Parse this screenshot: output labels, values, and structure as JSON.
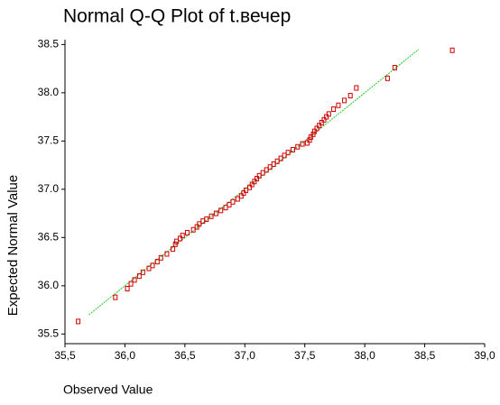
{
  "chart_data": {
    "type": "scatter",
    "title": "Normal Q-Q Plot of t.вечер",
    "x_label": "Observed Value",
    "y_label": "Expected Normal Value",
    "xlim": [
      35.5,
      39.0
    ],
    "ylim": [
      35.4,
      38.55
    ],
    "xticks": [
      {
        "value": 35.5,
        "label": "35,5"
      },
      {
        "value": 36,
        "label": "36,0"
      },
      {
        "value": 36.5,
        "label": "36,5"
      },
      {
        "value": 37,
        "label": "37,0"
      },
      {
        "value": 37.5,
        "label": "37,5"
      },
      {
        "value": 38,
        "label": "38,0"
      },
      {
        "value": 38.5,
        "label": "38,5"
      },
      {
        "value": 39,
        "label": "39,0"
      }
    ],
    "yticks": [
      35.5,
      {
        "value": 36,
        "label": "36.0"
      },
      36.5,
      {
        "value": 37,
        "label": "37.0"
      },
      37.5,
      {
        "value": 38,
        "label": "38.0"
      },
      38.5
    ],
    "color": "#cc0000",
    "x": [
      35.61,
      35.92,
      36.02,
      36.05,
      36.08,
      36.12,
      36.15,
      36.2,
      36.23,
      36.27,
      36.3,
      36.35,
      36.4,
      36.42,
      36.43,
      36.46,
      36.48,
      36.52,
      36.57,
      36.6,
      36.62,
      36.65,
      36.68,
      36.72,
      36.76,
      36.8,
      36.84,
      36.87,
      36.9,
      36.94,
      36.97,
      36.99,
      37.01,
      37.04,
      37.06,
      37.08,
      37.1,
      37.12,
      37.15,
      37.18,
      37.21,
      37.24,
      37.27,
      37.3,
      37.33,
      37.36,
      37.4,
      37.44,
      37.48,
      37.52,
      37.54,
      37.55,
      37.57,
      37.58,
      37.6,
      37.62,
      37.64,
      37.66,
      37.68,
      37.7,
      37.74,
      37.78,
      37.83,
      37.88,
      37.93,
      38.19,
      38.25,
      38.73
    ],
    "values": [
      35.63,
      35.88,
      35.97,
      36.02,
      36.06,
      36.1,
      36.14,
      36.18,
      36.21,
      36.25,
      36.29,
      36.33,
      36.38,
      36.43,
      36.46,
      36.49,
      36.52,
      36.55,
      36.58,
      36.61,
      36.64,
      36.67,
      36.69,
      36.72,
      36.75,
      36.78,
      36.81,
      36.84,
      36.87,
      36.9,
      36.93,
      36.96,
      36.99,
      37.02,
      37.05,
      37.08,
      37.11,
      37.14,
      37.17,
      37.2,
      37.23,
      37.26,
      37.29,
      37.32,
      37.35,
      37.38,
      37.41,
      37.44,
      37.47,
      37.48,
      37.51,
      37.54,
      37.57,
      37.6,
      37.63,
      37.66,
      37.69,
      37.72,
      37.75,
      37.78,
      37.83,
      37.87,
      37.92,
      37.97,
      38.05,
      38.15,
      38.26,
      38.44
    ],
    "reference_line": {
      "color": "#22cc22",
      "x": [
        35.7,
        38.45
      ],
      "y": [
        35.7,
        38.45
      ]
    }
  }
}
